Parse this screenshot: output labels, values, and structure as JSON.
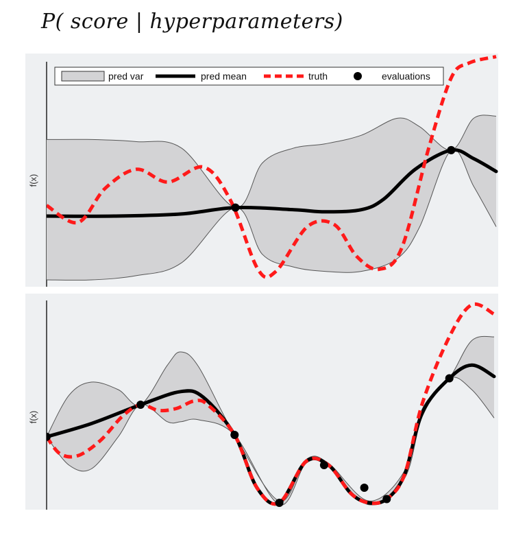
{
  "page_title": "P( score | hyperparameters)",
  "legend": {
    "pred_var": "pred var",
    "pred_mean": "pred mean",
    "truth": "truth",
    "evaluations": "evaluations"
  },
  "colors": {
    "panel_background": "#eef0f2",
    "band_fill": "#d3d3d5",
    "band_edge": "#555555",
    "pred_mean": "#000000",
    "truth": "#ff1a1a",
    "evaluations": "#000000"
  },
  "chart_data": [
    {
      "type": "line",
      "ylabel": "f(x)",
      "xlabel": "",
      "xlim": [
        0,
        1
      ],
      "ylim": [
        0,
        1
      ],
      "grid": false,
      "legend_position": "top",
      "series": [
        {
          "name": "truth",
          "style": "dashed",
          "x": [
            0,
            0.07,
            0.13,
            0.2,
            0.27,
            0.35,
            0.41,
            0.47,
            0.51,
            0.58,
            0.64,
            0.69,
            0.74,
            0.79,
            0.85,
            0.9,
            0.94,
            1.0
          ],
          "y": [
            0.35,
            0.27,
            0.43,
            0.52,
            0.46,
            0.53,
            0.37,
            0.05,
            0.04,
            0.25,
            0.26,
            0.11,
            0.05,
            0.15,
            0.62,
            0.95,
            1.02,
            1.05
          ]
        },
        {
          "name": "pred mean",
          "style": "solid",
          "x": [
            0,
            0.15,
            0.3,
            0.42,
            0.55,
            0.62,
            0.7,
            0.75,
            0.82,
            0.9,
            0.95,
            1.0
          ],
          "y": [
            0.3,
            0.3,
            0.31,
            0.34,
            0.33,
            0.32,
            0.33,
            0.38,
            0.52,
            0.61,
            0.57,
            0.51
          ]
        },
        {
          "name": "pred var (upper)",
          "x": [
            0,
            0.1,
            0.2,
            0.3,
            0.42,
            0.48,
            0.55,
            0.62,
            0.7,
            0.78,
            0.83,
            0.9,
            0.95,
            1.0
          ],
          "y": [
            0.66,
            0.66,
            0.65,
            0.62,
            0.34,
            0.55,
            0.62,
            0.64,
            0.68,
            0.76,
            0.72,
            0.61,
            0.76,
            0.77
          ]
        },
        {
          "name": "pred var (lower)",
          "x": [
            0,
            0.1,
            0.2,
            0.3,
            0.42,
            0.48,
            0.55,
            0.62,
            0.7,
            0.78,
            0.83,
            0.9,
            0.95,
            1.0
          ],
          "y": [
            0.0,
            0.0,
            0.02,
            0.08,
            0.34,
            0.12,
            0.06,
            0.04,
            0.04,
            0.1,
            0.25,
            0.61,
            0.44,
            0.25
          ]
        }
      ],
      "evaluations": [
        {
          "x": 0.42,
          "y": 0.34
        },
        {
          "x": 0.9,
          "y": 0.61
        }
      ]
    },
    {
      "type": "line",
      "ylabel": "f(x)",
      "xlabel": "",
      "xlim": [
        0,
        1
      ],
      "ylim": [
        0,
        1
      ],
      "grid": false,
      "legend_position": "none",
      "series": [
        {
          "name": "truth",
          "style": "dashed",
          "x": [
            0,
            0.03,
            0.07,
            0.12,
            0.17,
            0.21,
            0.25,
            0.29,
            0.33,
            0.36,
            0.42,
            0.47,
            0.52,
            0.58,
            0.63,
            0.68,
            0.72,
            0.76,
            0.8,
            0.84,
            0.9,
            0.95,
            1.0
          ],
          "y": [
            0.35,
            0.26,
            0.25,
            0.33,
            0.46,
            0.52,
            0.49,
            0.5,
            0.54,
            0.52,
            0.36,
            0.08,
            0.0,
            0.22,
            0.2,
            0.05,
            0.0,
            0.02,
            0.15,
            0.53,
            0.88,
            1.05,
            1.0
          ]
        },
        {
          "name": "pred mean",
          "style": "solid",
          "x": [
            0,
            0.1,
            0.21,
            0.3,
            0.35,
            0.42,
            0.47,
            0.52,
            0.58,
            0.63,
            0.68,
            0.72,
            0.76,
            0.8,
            0.84,
            0.9,
            0.95,
            1.0
          ],
          "y": [
            0.35,
            0.42,
            0.52,
            0.59,
            0.56,
            0.36,
            0.08,
            0.0,
            0.22,
            0.2,
            0.05,
            0.0,
            0.02,
            0.15,
            0.48,
            0.66,
            0.73,
            0.67
          ]
        },
        {
          "name": "pred var (upper)",
          "x": [
            0,
            0.05,
            0.1,
            0.16,
            0.21,
            0.27,
            0.3,
            0.34,
            0.42,
            0.52,
            0.58,
            0.63,
            0.72,
            0.8,
            0.84,
            0.9,
            0.95,
            1.0
          ],
          "y": [
            0.35,
            0.57,
            0.64,
            0.6,
            0.52,
            0.73,
            0.8,
            0.72,
            0.36,
            0.01,
            0.23,
            0.21,
            0.01,
            0.17,
            0.5,
            0.66,
            0.86,
            0.88
          ]
        },
        {
          "name": "pred var (lower)",
          "x": [
            0,
            0.05,
            0.1,
            0.16,
            0.21,
            0.27,
            0.3,
            0.34,
            0.42,
            0.52,
            0.58,
            0.63,
            0.72,
            0.8,
            0.84,
            0.9,
            0.95,
            1.0
          ],
          "y": [
            0.35,
            0.2,
            0.18,
            0.35,
            0.52,
            0.43,
            0.43,
            0.44,
            0.36,
            -0.01,
            0.21,
            0.19,
            -0.01,
            0.13,
            0.46,
            0.66,
            0.6,
            0.45
          ]
        }
      ],
      "evaluations": [
        {
          "x": 0.0,
          "y": 0.35
        },
        {
          "x": 0.21,
          "y": 0.52
        },
        {
          "x": 0.42,
          "y": 0.36
        },
        {
          "x": 0.52,
          "y": 0.0
        },
        {
          "x": 0.62,
          "y": 0.2
        },
        {
          "x": 0.71,
          "y": 0.08
        },
        {
          "x": 0.76,
          "y": 0.02
        },
        {
          "x": 0.9,
          "y": 0.66
        }
      ]
    }
  ]
}
